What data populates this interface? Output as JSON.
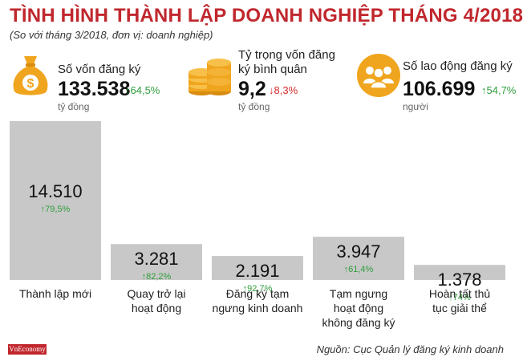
{
  "header": {
    "title": "TÌNH HÌNH THÀNH LẬP DOANH NGHIỆP THÁNG 4/2018",
    "subtitle": "(So với tháng 3/2018, đơn vị: doanh nghiệp)"
  },
  "stats": [
    {
      "icon": "money-bag-icon",
      "label": "Số vốn đăng ký",
      "value": "133.538",
      "arrow": "↑",
      "change": "64,5%",
      "direction": "up",
      "unit": "tỷ đồng"
    },
    {
      "icon": "coin-stack-icon",
      "label_line1": "Tỷ trọng vốn đăng",
      "label_line2": "ký bình quân",
      "value": "9,2",
      "arrow": "↓",
      "change": "8,3%",
      "direction": "down",
      "unit": "tỷ đồng"
    },
    {
      "icon": "people-group-icon",
      "label": "Số lao động đăng ký",
      "value": "106.699",
      "arrow": "↑",
      "change": "54,7%",
      "direction": "up",
      "unit": "người"
    }
  ],
  "chart_data": {
    "type": "bar",
    "categories": [
      [
        "Thành lập mới"
      ],
      [
        "Quay trở lại",
        "hoạt động"
      ],
      [
        "Đăng ký tạm",
        "ngưng kinh doanh"
      ],
      [
        "Tạm ngưng",
        "hoạt động",
        "không đăng ký"
      ],
      [
        "Hoàn tất thủ",
        "tục giải thể"
      ]
    ],
    "values": [
      14510,
      3281,
      2191,
      3947,
      1378
    ],
    "value_labels": [
      "14.510",
      "3.281",
      "2.191",
      "3.947",
      "1.378"
    ],
    "changes": [
      "↑79,5%",
      "↑82,2%",
      "↑92,7%",
      "↑61,4%",
      "↑74%"
    ],
    "colors": {
      "bar": "#c8c8c8",
      "value_text": "#111111",
      "change_up": "#2e9e3c"
    }
  },
  "footer": {
    "brand": "VnEconomy",
    "source": "Nguồn: Cục Quản lý đăng ký kinh doanh"
  },
  "colors": {
    "accent": "#c0272d",
    "icon_gold": "#f0a51e",
    "up": "#2e9e3c",
    "down": "#d62b2b"
  }
}
